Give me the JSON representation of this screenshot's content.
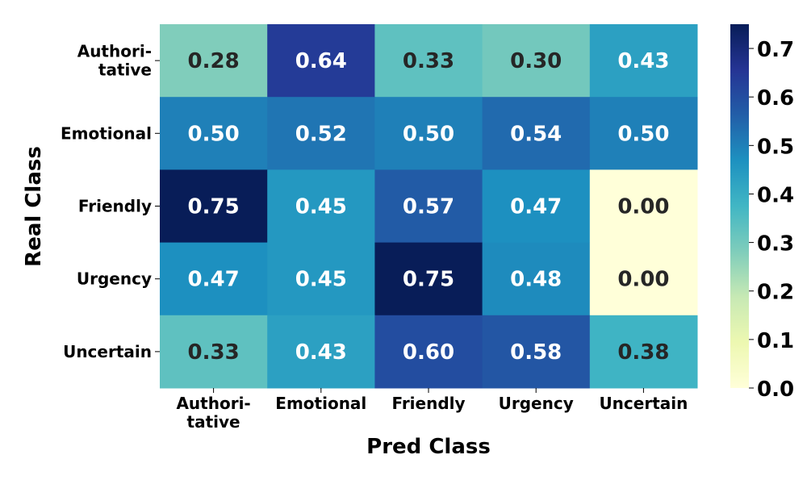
{
  "chart_data": {
    "type": "heatmap",
    "xlabel": "Pred Class",
    "ylabel": "Real Class",
    "x_categories": [
      [
        "Authori-",
        "tative"
      ],
      [
        "Emotional"
      ],
      [
        "Friendly"
      ],
      [
        "Urgency"
      ],
      [
        "Uncertain"
      ]
    ],
    "y_categories": [
      [
        "Authori-",
        "tative"
      ],
      [
        "Emotional"
      ],
      [
        "Friendly"
      ],
      [
        "Urgency"
      ],
      [
        "Uncertain"
      ]
    ],
    "values": [
      [
        0.28,
        0.64,
        0.33,
        0.3,
        0.43
      ],
      [
        0.5,
        0.52,
        0.5,
        0.54,
        0.5
      ],
      [
        0.75,
        0.45,
        0.57,
        0.47,
        0.0
      ],
      [
        0.47,
        0.45,
        0.75,
        0.48,
        0.0
      ],
      [
        0.33,
        0.43,
        0.6,
        0.58,
        0.38
      ]
    ],
    "value_format_decimals": 2,
    "colormap": "YlGnBu",
    "colorbar": {
      "min": 0.0,
      "max": 0.75,
      "ticks": [
        0.0,
        0.1,
        0.2,
        0.3,
        0.4,
        0.5,
        0.6,
        0.7
      ],
      "tick_labels": [
        "0.0",
        "0.1",
        "0.2",
        "0.3",
        "0.4",
        "0.5",
        "0.6",
        "0.7"
      ]
    },
    "colors": {
      "text_dark": "#262626",
      "text_light": "#ffffff",
      "stops": [
        "#ffffd9",
        "#edf8b1",
        "#c7e9b4",
        "#7fcdbb",
        "#41b6c4",
        "#1d91c0",
        "#225ea8",
        "#253494",
        "#081d58"
      ]
    }
  }
}
